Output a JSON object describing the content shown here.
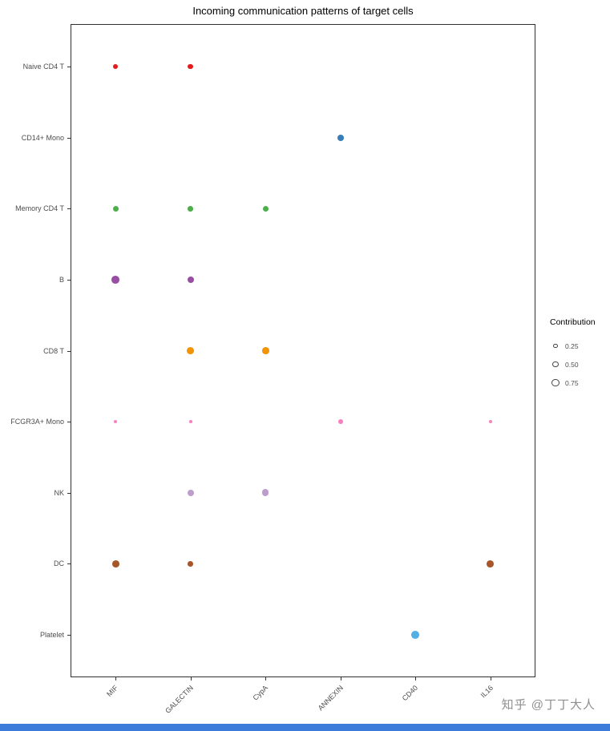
{
  "title": "Incoming communication patterns of target cells",
  "watermark": "知乎 @丁丁大人",
  "footer_bar_color": "#3C7BD9",
  "chart_data": {
    "type": "scatter",
    "title": "Incoming communication patterns of target cells",
    "xlabel": "",
    "ylabel": "",
    "legend_title": "Contribution",
    "legend_sizes": [
      "0.25",
      "0.50",
      "0.75"
    ],
    "legend_position": "right",
    "grid": false,
    "x_categories": [
      "MIF",
      "GALECTIN",
      "CypA",
      "ANNEXIN",
      "CD40",
      "IL16"
    ],
    "y_categories": [
      "Naive CD4 T",
      "CD14+ Mono",
      "Memory CD4 T",
      "B",
      "CD8 T",
      "FCGR3A+ Mono",
      "NK",
      "DC",
      "Platelet"
    ],
    "row_colors": {
      "Naive CD4 T": "#E41A1C",
      "CD14+ Mono": "#377EB8",
      "Memory CD4 T": "#4DAF4A",
      "B": "#984EA3",
      "CD8 T": "#F29403",
      "FCGR3A+ Mono": "#F781BF",
      "NK": "#BC9DCC",
      "DC": "#A65628",
      "Platelet": "#54B0E4"
    },
    "points": [
      {
        "y": "Naive CD4 T",
        "x": "MIF",
        "contribution": 0.35
      },
      {
        "y": "Naive CD4 T",
        "x": "GALECTIN",
        "contribution": 0.4
      },
      {
        "y": "CD14+ Mono",
        "x": "ANNEXIN",
        "contribution": 0.6
      },
      {
        "y": "Memory CD4 T",
        "x": "MIF",
        "contribution": 0.45
      },
      {
        "y": "Memory CD4 T",
        "x": "GALECTIN",
        "contribution": 0.4
      },
      {
        "y": "Memory CD4 T",
        "x": "CypA",
        "contribution": 0.45
      },
      {
        "y": "B",
        "x": "MIF",
        "contribution": 0.75
      },
      {
        "y": "B",
        "x": "GALECTIN",
        "contribution": 0.55
      },
      {
        "y": "CD8 T",
        "x": "GALECTIN",
        "contribution": 0.65
      },
      {
        "y": "CD8 T",
        "x": "CypA",
        "contribution": 0.65
      },
      {
        "y": "FCGR3A+ Mono",
        "x": "MIF",
        "contribution": 0.12
      },
      {
        "y": "FCGR3A+ Mono",
        "x": "GALECTIN",
        "contribution": 0.08
      },
      {
        "y": "FCGR3A+ Mono",
        "x": "ANNEXIN",
        "contribution": 0.3
      },
      {
        "y": "FCGR3A+ Mono",
        "x": "IL16",
        "contribution": 0.12
      },
      {
        "y": "NK",
        "x": "GALECTIN",
        "contribution": 0.55
      },
      {
        "y": "NK",
        "x": "CypA",
        "contribution": 0.6
      },
      {
        "y": "DC",
        "x": "MIF",
        "contribution": 0.65
      },
      {
        "y": "DC",
        "x": "GALECTIN",
        "contribution": 0.4
      },
      {
        "y": "DC",
        "x": "IL16",
        "contribution": 0.65
      },
      {
        "y": "Platelet",
        "x": "CD40",
        "contribution": 0.75
      }
    ]
  }
}
